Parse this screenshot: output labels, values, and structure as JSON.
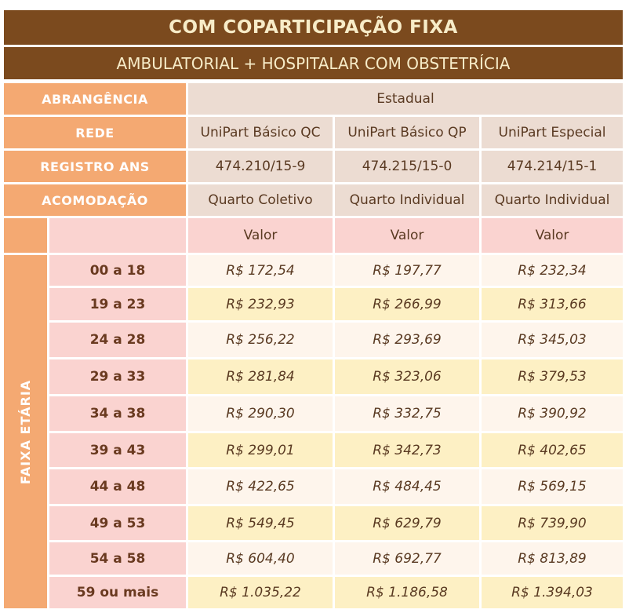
{
  "title": "COM COPARTICIPAÇÃO FIXA",
  "subtitle": "AMBULATORIAL + HOSPITALAR COM OBSTETRÍCIA",
  "abrangencia": {
    "label": "ABRANGÊNCIA",
    "value": "Estadual"
  },
  "rede": {
    "label": "REDE",
    "values": [
      "UniPart Básico QC",
      "UniPart Básico QP",
      "UniPart Especial"
    ]
  },
  "registro": {
    "label": "REGISTRO ANS",
    "values": [
      "474.210/15-9",
      "474.215/15-0",
      "474.214/15-1"
    ]
  },
  "acomodacao": {
    "label": "ACOMODAÇÃO",
    "values": [
      "Quarto Coletivo",
      "Quarto Individual",
      "Quarto Individual"
    ]
  },
  "valor_header": [
    "Valor",
    "Valor",
    "Valor"
  ],
  "faixa_label": "FAIXA ETÁRIA",
  "rows": [
    {
      "age": "00 a 18",
      "prices": [
        "R$ 172,54",
        "R$ 197,77",
        "R$ 232,34"
      ]
    },
    {
      "age": "19 a 23",
      "prices": [
        "R$ 232,93",
        "R$ 266,99",
        "R$ 313,66"
      ]
    },
    {
      "age": "24 a 28",
      "prices": [
        "R$ 256,22",
        "R$ 293,69",
        "R$ 345,03"
      ]
    },
    {
      "age": "29 a 33",
      "prices": [
        "R$ 281,84",
        "R$ 323,06",
        "R$ 379,53"
      ]
    },
    {
      "age": "34 a 38",
      "prices": [
        "R$ 290,30",
        "R$ 332,75",
        "R$ 390,92"
      ]
    },
    {
      "age": "39 a 43",
      "prices": [
        "R$ 299,01",
        "R$ 342,73",
        "R$ 402,65"
      ]
    },
    {
      "age": "44 a 48",
      "prices": [
        "R$ 422,65",
        "R$ 484,45",
        "R$ 569,15"
      ]
    },
    {
      "age": "49 a 53",
      "prices": [
        "R$ 549,45",
        "R$ 629,79",
        "R$ 739,90"
      ]
    },
    {
      "age": "54 a 58",
      "prices": [
        "R$ 604,40",
        "R$ 692,77",
        "R$ 813,89"
      ]
    },
    {
      "age": "59 ou mais",
      "prices": [
        "R$ 1.035,22",
        "R$ 1.186,58",
        "R$ 1.394,03"
      ]
    }
  ],
  "colors": {
    "band": "#7b4a1e",
    "label_orange": "#f4a972",
    "pink": "#fad3d0",
    "cream": "#fef5ec",
    "yellow": "#fdf0c4"
  }
}
